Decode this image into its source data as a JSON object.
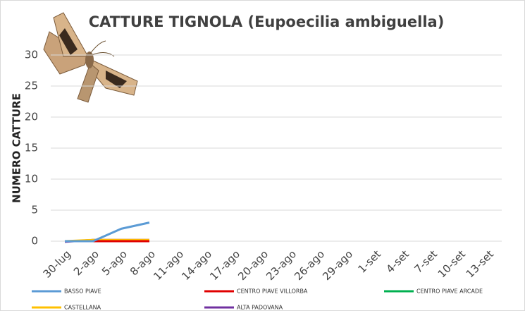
{
  "chart_data": {
    "type": "line",
    "title": "CATTURE TIGNOLA (Eupoecilia ambiguella)",
    "y_label": "NUMERO CATTURE",
    "categories": [
      "30-lug",
      "2-ago",
      "5-ago",
      "8-ago",
      "11-ago",
      "14-ago",
      "17-ago",
      "20-ago",
      "23-ago",
      "26-ago",
      "29-ago",
      "1-set",
      "4-set",
      "7-set",
      "10-set",
      "13-set"
    ],
    "series": [
      {
        "name": "BASSO PIAVE",
        "color": "#5b9bd5",
        "values": [
          0,
          0,
          2,
          3,
          null,
          null,
          null,
          null,
          null,
          null,
          null,
          null,
          null,
          null,
          null,
          null
        ]
      },
      {
        "name": "CENTRO PIAVE VILLORBA",
        "color": "#e00000",
        "values": [
          0,
          0,
          0,
          0,
          null,
          null,
          null,
          null,
          null,
          null,
          null,
          null,
          null,
          null,
          null,
          null
        ]
      },
      {
        "name": "CENTRO PIAVE ARCADE",
        "color": "#00b050",
        "values": [
          0,
          0,
          0,
          0,
          null,
          null,
          null,
          null,
          null,
          null,
          null,
          null,
          null,
          null,
          null,
          null
        ]
      },
      {
        "name": "CASTELLANA",
        "color": "#ffc000",
        "values": [
          0,
          0.2,
          0.2,
          0.2,
          null,
          null,
          null,
          null,
          null,
          null,
          null,
          null,
          null,
          null,
          null,
          null
        ]
      },
      {
        "name": "ALTA PADOVANA",
        "color": "#7030a0",
        "values": [
          -0.1,
          0.2,
          0.2,
          0.2,
          null,
          null,
          null,
          null,
          null,
          null,
          null,
          null,
          null,
          null,
          null,
          null
        ]
      }
    ],
    "ylim": [
      0,
      30
    ],
    "yticks": [
      0,
      5,
      10,
      15,
      20,
      25,
      30
    ],
    "grid": true
  }
}
